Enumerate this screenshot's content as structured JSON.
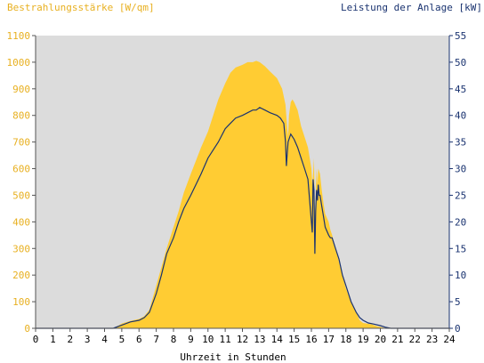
{
  "chart_data": {
    "type": "area",
    "title_left": "Bestrahlungsstärke [W/qm]",
    "title_right": "Leistung der Anlage [kW]",
    "xlabel": "Uhrzeit in Stunden",
    "x_ticks": [
      "0",
      "1",
      "2",
      "3",
      "4",
      "5",
      "6",
      "7",
      "8",
      "9",
      "10",
      "11",
      "12",
      "13",
      "14",
      "15",
      "16",
      "17",
      "18",
      "19",
      "20",
      "21",
      "22",
      "23",
      "24"
    ],
    "xlim": [
      0,
      24
    ],
    "y_left_ticks": [
      "0",
      "100",
      "200",
      "300",
      "400",
      "500",
      "600",
      "700",
      "800",
      "900",
      "1000",
      "1100"
    ],
    "ylim_left": [
      0,
      1100
    ],
    "y_right_ticks": [
      "0",
      "5",
      "10",
      "15",
      "20",
      "25",
      "30",
      "35",
      "40",
      "45",
      "50",
      "55"
    ],
    "ylim_right": [
      0,
      55
    ],
    "grid": false,
    "colors": {
      "irradiance": "#ffcc33",
      "power": "#1a3370",
      "plot_bg": "#dcdcdc",
      "left_axis_text": "#e8b020",
      "right_axis_text": "#1a3370"
    },
    "series": [
      {
        "axis": "left",
        "x": [
          0,
          4.5,
          4.8,
          5,
          5.5,
          6,
          6.3,
          6.6,
          7,
          7.3,
          7.6,
          8,
          8.3,
          8.6,
          9,
          9.3,
          9.6,
          10,
          10.3,
          10.6,
          11,
          11.3,
          11.6,
          12,
          12.3,
          12.6,
          12.8,
          13,
          13.3,
          13.6,
          14,
          14.3,
          14.5,
          14.6,
          14.65,
          14.7,
          14.8,
          14.9,
          15,
          15.2,
          15.4,
          15.6,
          15.8,
          15.9,
          16,
          16.05,
          16.1,
          16.15,
          16.2,
          16.3,
          16.35,
          16.4,
          16.5,
          16.6,
          16.7,
          16.8,
          17,
          17.1,
          17.2,
          17.4,
          17.6,
          17.8,
          18,
          18.3,
          18.6,
          18.8,
          19,
          19.2,
          19.5,
          19.8,
          20,
          20.2,
          20.5,
          21,
          24
        ],
        "values": [
          0,
          0,
          10,
          18,
          28,
          35,
          45,
          70,
          160,
          230,
          300,
          380,
          440,
          510,
          580,
          630,
          680,
          740,
          800,
          860,
          920,
          960,
          980,
          990,
          1000,
          1000,
          1005,
          1000,
          985,
          965,
          940,
          900,
          840,
          750,
          720,
          800,
          850,
          860,
          850,
          820,
          760,
          720,
          680,
          640,
          600,
          540,
          580,
          640,
          420,
          600,
          540,
          600,
          580,
          520,
          470,
          430,
          400,
          370,
          350,
          300,
          250,
          200,
          150,
          100,
          60,
          30,
          20,
          18,
          15,
          8,
          5,
          2,
          1,
          0,
          0
        ]
      },
      {
        "axis": "right",
        "x": [
          0,
          4.5,
          5,
          5.5,
          6,
          6.3,
          6.6,
          7,
          7.3,
          7.6,
          8,
          8.3,
          8.6,
          9,
          9.3,
          9.6,
          10,
          10.3,
          10.6,
          11,
          11.3,
          11.6,
          12,
          12.3,
          12.6,
          12.8,
          13,
          13.3,
          13.6,
          14,
          14.2,
          14.4,
          14.5,
          14.55,
          14.6,
          14.65,
          14.7,
          14.8,
          14.9,
          15,
          15.2,
          15.4,
          15.6,
          15.8,
          16,
          16.05,
          16.1,
          16.15,
          16.2,
          16.25,
          16.3,
          16.35,
          16.4,
          16.45,
          16.5,
          16.6,
          16.7,
          16.8,
          17,
          17.1,
          17.2,
          17.4,
          17.6,
          17.8,
          18,
          18.3,
          18.6,
          18.8,
          19,
          19.3,
          19.6,
          20,
          20.3,
          20.6,
          24
        ],
        "values": [
          0,
          0,
          0.6,
          1.2,
          1.5,
          2,
          3,
          6.5,
          10,
          14,
          17,
          20,
          22.5,
          25,
          27,
          29,
          32,
          33.5,
          35,
          37.5,
          38.5,
          39.5,
          40,
          40.5,
          41,
          41,
          41.5,
          41,
          40.5,
          40,
          39.5,
          38.5,
          35,
          30.5,
          33,
          35,
          35.5,
          36.5,
          36,
          35.5,
          34,
          32,
          30,
          28,
          20,
          18,
          28,
          26,
          14,
          22,
          26,
          24,
          27,
          25,
          25,
          23,
          21,
          19,
          17.5,
          17,
          17,
          15,
          13,
          10,
          8,
          5,
          3,
          2,
          1.5,
          1,
          0.8,
          0.5,
          0.2,
          0,
          0
        ]
      }
    ]
  }
}
